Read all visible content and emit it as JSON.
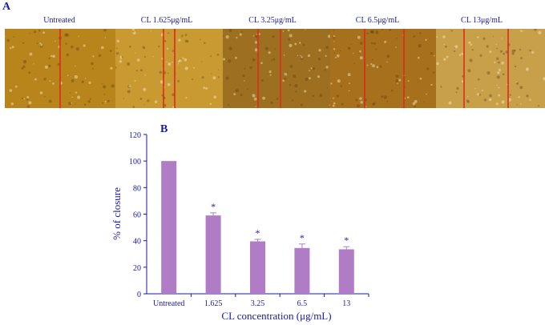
{
  "figure": {
    "panel_a_label": "A",
    "panel_b_label": "B"
  },
  "micrographs": {
    "panels": [
      {
        "caption": "Untreated",
        "tone": "#b8841c"
      },
      {
        "caption": "CL 1.625μg/mL",
        "tone": "#c99a32"
      },
      {
        "caption": "CL 3.25μg/mL",
        "tone": "#9c7020"
      },
      {
        "caption": "CL 6.5μg/mL",
        "tone": "#a7701c"
      },
      {
        "caption": "CL 13μg/mL",
        "tone": "#c8a04a"
      }
    ],
    "line_color": "#e02a1a"
  },
  "chart_data": {
    "type": "bar",
    "categories": [
      "Untreated",
      "1.625",
      "3.25",
      "6.5",
      "13"
    ],
    "values": [
      100,
      59,
      39.5,
      34.5,
      33.5
    ],
    "errors": [
      0,
      2,
      1.5,
      3,
      2
    ],
    "annotations": [
      "",
      "*",
      "*",
      "*",
      "*"
    ],
    "xlabel": "CL concentration (μg/mL)",
    "ylabel": "% of closure",
    "ylim": [
      0,
      120
    ],
    "yticks": [
      0,
      20,
      40,
      60,
      80,
      100,
      120
    ],
    "bar_color": "#b07cc6",
    "axis_color": "#1a1aa0",
    "grid": false
  }
}
